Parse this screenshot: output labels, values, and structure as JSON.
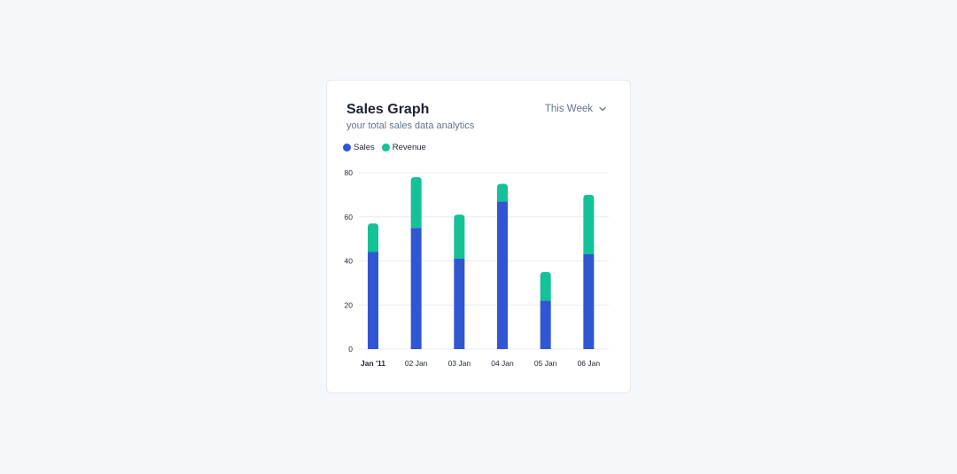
{
  "card": {
    "title": "Sales Graph",
    "subtitle": "your total sales data analytics",
    "period_label": "This Week",
    "period_icon": "chevron-down-icon"
  },
  "colors": {
    "sales": "#3056d3",
    "revenue": "#13c296",
    "grid": "#e8ebf0",
    "tick_text": "#1c2434"
  },
  "chart_data": {
    "type": "bar",
    "stacked": true,
    "categories": [
      "Jan '11",
      "02 Jan",
      "03 Jan",
      "04 Jan",
      "05 Jan",
      "06 Jan"
    ],
    "series": [
      {
        "name": "Sales",
        "values": [
          44,
          55,
          41,
          67,
          22,
          43
        ]
      },
      {
        "name": "Revenue",
        "values": [
          13,
          23,
          20,
          8,
          13,
          27
        ]
      }
    ],
    "yticks": [
      0,
      20,
      40,
      60,
      80
    ],
    "ylim": [
      0,
      80
    ],
    "grid": true,
    "legend_position": "top-left",
    "title": "Sales Graph"
  }
}
